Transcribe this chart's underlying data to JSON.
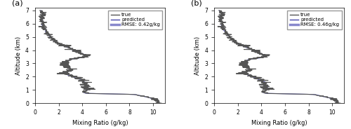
{
  "title_a": "(a)",
  "title_b": "(b)",
  "xlabel": "Mixing Ratio (g/kg)",
  "ylabel": "Altitude (km)",
  "xlim": [
    0,
    11
  ],
  "ylim": [
    0,
    7.2
  ],
  "xticks": [
    0,
    2,
    4,
    6,
    8,
    10
  ],
  "yticks": [
    0,
    1,
    2,
    3,
    4,
    5,
    6,
    7
  ],
  "legend_a": [
    "true",
    "predicted",
    "RMSE: 0.42g/kg"
  ],
  "legend_b": [
    "true",
    "predicted",
    "RMSE: 0.46g/kg"
  ],
  "true_color": "#555555",
  "pred_color": "#4444aa",
  "pred_color_wide": "#8888cc",
  "true_lw": 0.8,
  "pred_lw": 0.8,
  "figsize": [
    5.0,
    1.84
  ],
  "dpi": 100
}
